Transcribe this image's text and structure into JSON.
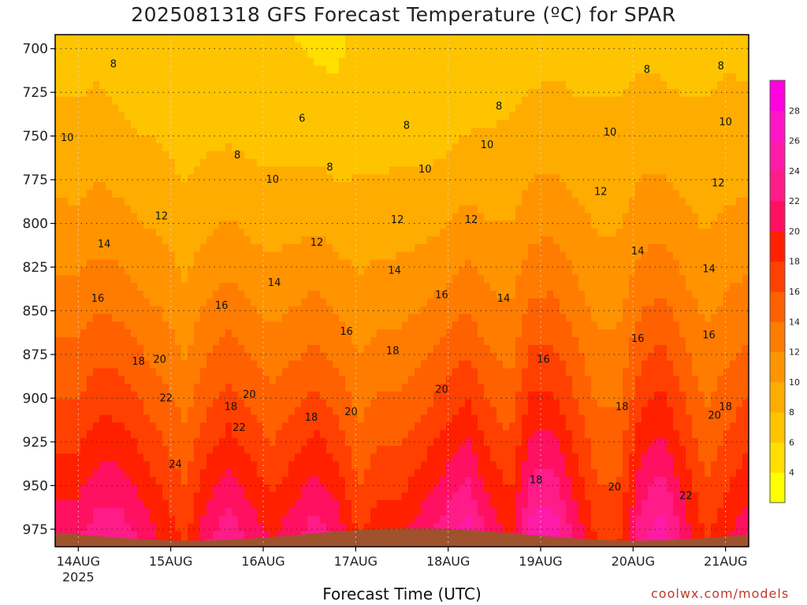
{
  "chart_data": {
    "type": "heatmap",
    "title": "2025081318 GFS Forecast Temperature (ºC) for SPAR",
    "xlabel": "Forecast Time (UTC)",
    "ylabel": "",
    "credit": "coolwx.com/models",
    "x_ticks": [
      "14AUG",
      "15AUG",
      "16AUG",
      "17AUG",
      "18AUG",
      "19AUG",
      "20AUG",
      "21AUG"
    ],
    "x_year_label": "2025",
    "y_ticks": [
      700,
      725,
      750,
      775,
      800,
      825,
      850,
      875,
      900,
      925,
      950,
      975
    ],
    "ylim": [
      985,
      692
    ],
    "xlim_days": [
      13.75,
      21.25
    ],
    "grid": true,
    "colorbar": {
      "ticks": [
        4,
        6,
        8,
        10,
        12,
        14,
        16,
        18,
        20,
        22,
        24,
        26,
        28
      ],
      "levels": [
        2,
        4,
        6,
        8,
        10,
        12,
        14,
        16,
        18,
        20,
        22,
        24,
        26,
        28,
        30
      ],
      "colors": [
        "#ffff00",
        "#ffde00",
        "#ffc400",
        "#ffac00",
        "#ff9400",
        "#ff7c00",
        "#ff6000",
        "#ff4000",
        "#ff2000",
        "#ff1060",
        "#ff1c88",
        "#ff1aa8",
        "#ff14c8",
        "#ff00e0"
      ]
    },
    "series": [
      {
        "name": "temperature_at_975",
        "values": [
          22,
          22,
          24,
          24,
          22,
          20,
          18,
          22,
          24,
          22,
          20,
          22,
          24,
          22,
          18,
          20,
          20,
          22,
          24,
          26,
          22,
          20,
          26,
          26,
          22,
          18,
          18,
          24,
          26,
          22,
          18,
          20,
          22
        ]
      },
      {
        "name": "temperature_at_700",
        "values": [
          7.5,
          7.4,
          7.6,
          7.1,
          6.8,
          6.8,
          6.2,
          6.3,
          6.4,
          6.2,
          6.3,
          6.0,
          5.8,
          5.7,
          6.4,
          6.2,
          6.3,
          6.0,
          6.1,
          6.5,
          6.9,
          7.3,
          7.4,
          7.6,
          7.5,
          7.6,
          7.6,
          7.7,
          7.6,
          7.4,
          7.6,
          7.8,
          7.6
        ]
      }
    ],
    "contour_labels": [
      {
        "value": "8",
        "x": 14.38,
        "p": 709
      },
      {
        "value": "10",
        "x": 13.88,
        "p": 751
      },
      {
        "value": "6",
        "x": 16.42,
        "p": 740
      },
      {
        "value": "8",
        "x": 15.72,
        "p": 761
      },
      {
        "value": "8",
        "x": 16.72,
        "p": 768
      },
      {
        "value": "8",
        "x": 17.55,
        "p": 744
      },
      {
        "value": "8",
        "x": 18.55,
        "p": 733
      },
      {
        "value": "8",
        "x": 20.15,
        "p": 712
      },
      {
        "value": "8",
        "x": 20.95,
        "p": 710
      },
      {
        "value": "10",
        "x": 16.1,
        "p": 775
      },
      {
        "value": "10",
        "x": 17.75,
        "p": 769
      },
      {
        "value": "10",
        "x": 18.42,
        "p": 755
      },
      {
        "value": "10",
        "x": 19.75,
        "p": 748
      },
      {
        "value": "10",
        "x": 21.0,
        "p": 742
      },
      {
        "value": "12",
        "x": 14.9,
        "p": 796
      },
      {
        "value": "12",
        "x": 16.58,
        "p": 811
      },
      {
        "value": "12",
        "x": 17.45,
        "p": 798
      },
      {
        "value": "12",
        "x": 18.25,
        "p": 798
      },
      {
        "value": "12",
        "x": 19.65,
        "p": 782
      },
      {
        "value": "12",
        "x": 20.92,
        "p": 777
      },
      {
        "value": "14",
        "x": 14.28,
        "p": 812
      },
      {
        "value": "14",
        "x": 16.12,
        "p": 834
      },
      {
        "value": "14",
        "x": 17.42,
        "p": 827
      },
      {
        "value": "14",
        "x": 18.6,
        "p": 843
      },
      {
        "value": "14",
        "x": 20.05,
        "p": 816
      },
      {
        "value": "14",
        "x": 20.82,
        "p": 826
      },
      {
        "value": "16",
        "x": 14.21,
        "p": 843
      },
      {
        "value": "16",
        "x": 15.55,
        "p": 847
      },
      {
        "value": "16",
        "x": 16.9,
        "p": 862
      },
      {
        "value": "16",
        "x": 17.93,
        "p": 841
      },
      {
        "value": "16",
        "x": 19.03,
        "p": 878
      },
      {
        "value": "16",
        "x": 20.05,
        "p": 866
      },
      {
        "value": "16",
        "x": 20.82,
        "p": 864
      },
      {
        "value": "18",
        "x": 14.65,
        "p": 879
      },
      {
        "value": "18",
        "x": 17.4,
        "p": 873
      },
      {
        "value": "18",
        "x": 15.65,
        "p": 905
      },
      {
        "value": "18",
        "x": 16.52,
        "p": 911
      },
      {
        "value": "18",
        "x": 18.95,
        "p": 947
      },
      {
        "value": "18",
        "x": 19.88,
        "p": 905
      },
      {
        "value": "18",
        "x": 21.0,
        "p": 905
      },
      {
        "value": "20",
        "x": 14.88,
        "p": 878
      },
      {
        "value": "20",
        "x": 15.85,
        "p": 898
      },
      {
        "value": "20",
        "x": 16.95,
        "p": 908
      },
      {
        "value": "20",
        "x": 17.93,
        "p": 895
      },
      {
        "value": "20",
        "x": 19.8,
        "p": 951
      },
      {
        "value": "20",
        "x": 20.88,
        "p": 910
      },
      {
        "value": "22",
        "x": 14.95,
        "p": 900
      },
      {
        "value": "22",
        "x": 15.74,
        "p": 917
      },
      {
        "value": "22",
        "x": 20.57,
        "p": 956
      },
      {
        "value": "24",
        "x": 15.05,
        "p": 938
      }
    ]
  }
}
